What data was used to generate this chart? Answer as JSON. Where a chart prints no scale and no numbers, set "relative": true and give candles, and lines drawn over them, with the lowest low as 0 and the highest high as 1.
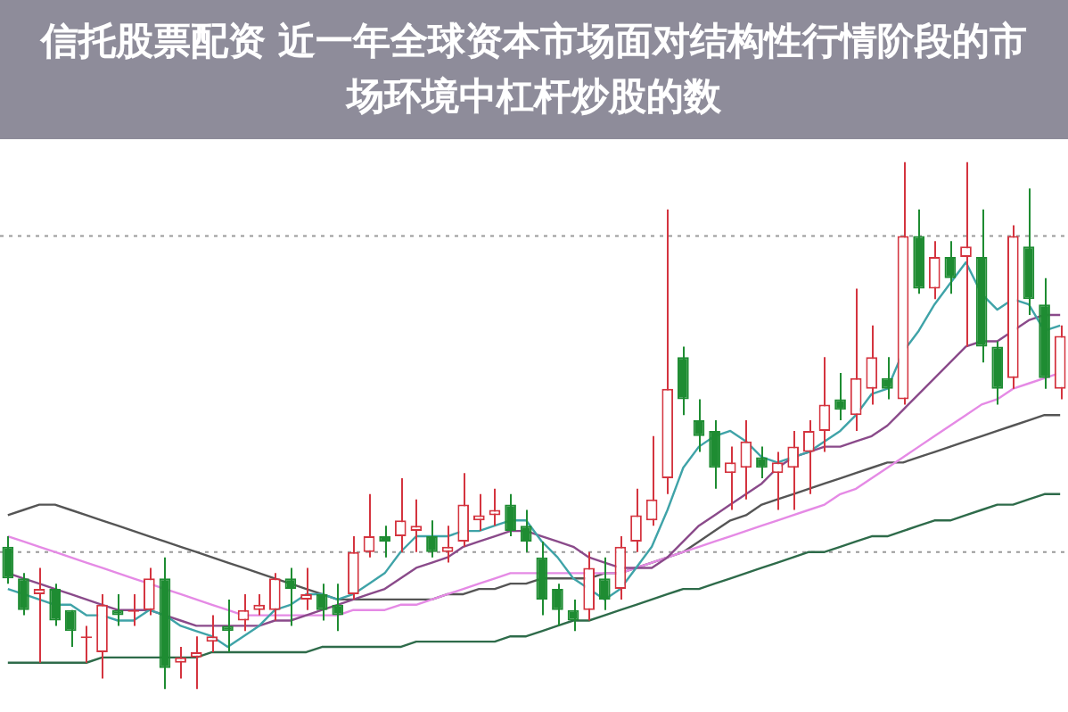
{
  "chart_data": {
    "type": "candlestick",
    "title": "信托股票配资 近一年全球资本市场面对结构性行情阶段的市场环境中杠杆炒股的数",
    "relative": true,
    "legend": false,
    "categories": [
      null,
      null,
      null,
      null,
      null,
      null,
      null,
      null,
      null,
      null,
      null,
      null,
      null,
      null,
      null,
      null,
      null,
      null,
      null,
      null,
      null,
      null,
      null,
      null,
      null,
      null,
      null,
      null,
      null,
      null,
      null,
      null,
      null,
      null,
      null,
      null,
      null,
      null,
      null,
      null,
      null,
      null,
      null,
      null,
      null,
      null,
      null,
      null,
      null,
      null,
      null,
      null,
      null,
      null,
      null,
      null,
      null,
      null,
      null,
      null,
      null,
      null,
      null,
      null,
      null,
      null,
      null,
      null
    ],
    "ohlc": [
      [
        0.27,
        0.29,
        0.2,
        0.21
      ],
      [
        0.21,
        0.22,
        0.14,
        0.15
      ],
      [
        0.18,
        0.23,
        0.05,
        0.19
      ],
      [
        0.19,
        0.2,
        0.12,
        0.13
      ],
      [
        0.15,
        0.15,
        0.08,
        0.11
      ],
      [
        0.1,
        0.12,
        0.05,
        0.1
      ],
      [
        0.07,
        0.18,
        0.02,
        0.16
      ],
      [
        0.15,
        0.18,
        0.12,
        0.14
      ],
      [
        0.15,
        0.18,
        0.12,
        0.15
      ],
      [
        0.15,
        0.23,
        0.14,
        0.21
      ],
      [
        0.21,
        0.25,
        0,
        0.04
      ],
      [
        0.05,
        0.08,
        0.02,
        0.06
      ],
      [
        0.06,
        0.1,
        0,
        0.07
      ],
      [
        0.09,
        0.14,
        0.07,
        0.1
      ],
      [
        0.12,
        0.17,
        0.07,
        0.11
      ],
      [
        0.13,
        0.18,
        0.11,
        0.15
      ],
      [
        0.15,
        0.18,
        0.14,
        0.16
      ],
      [
        0.15,
        0.22,
        0.13,
        0.21
      ],
      [
        0.21,
        0.23,
        0.12,
        0.19
      ],
      [
        0.17,
        0.23,
        0.15,
        0.18
      ],
      [
        0.18,
        0.2,
        0.13,
        0.15
      ],
      [
        0.16,
        0.2,
        0.11,
        0.14
      ],
      [
        0.18,
        0.29,
        0.17,
        0.26
      ],
      [
        0.26,
        0.37,
        0.25,
        0.29
      ],
      [
        0.29,
        0.31,
        0.25,
        0.28
      ],
      [
        0.29,
        0.4,
        0.26,
        0.32
      ],
      [
        0.3,
        0.36,
        0.26,
        0.31
      ],
      [
        0.29,
        0.32,
        0.25,
        0.26
      ],
      [
        0.26,
        0.31,
        0.24,
        0.27
      ],
      [
        0.28,
        0.41,
        0.27,
        0.35
      ],
      [
        0.32,
        0.37,
        0.3,
        0.33
      ],
      [
        0.33,
        0.38,
        0.31,
        0.34
      ],
      [
        0.35,
        0.37,
        0.29,
        0.3
      ],
      [
        0.31,
        0.34,
        0.26,
        0.28
      ],
      [
        0.25,
        0.28,
        0.14,
        0.17
      ],
      [
        0.19,
        0.2,
        0.12,
        0.15
      ],
      [
        0.15,
        0.17,
        0.11,
        0.13
      ],
      [
        0.15,
        0.26,
        0.13,
        0.23
      ],
      [
        0.21,
        0.25,
        0.15,
        0.17
      ],
      [
        0.19,
        0.29,
        0.17,
        0.27
      ],
      [
        0.28,
        0.38,
        0.26,
        0.33
      ],
      [
        0.32,
        0.48,
        0.31,
        0.36
      ],
      [
        0.4,
        0.91,
        0.37,
        0.57
      ],
      [
        0.63,
        0.65,
        0.52,
        0.55
      ],
      [
        0.51,
        0.55,
        0.45,
        0.48
      ],
      [
        0.49,
        0.51,
        0.38,
        0.42
      ],
      [
        0.41,
        0.46,
        0.34,
        0.43
      ],
      [
        0.42,
        0.51,
        0.36,
        0.47
      ],
      [
        0.44,
        0.46,
        0.4,
        0.42
      ],
      [
        0.41,
        0.45,
        0.34,
        0.43
      ],
      [
        0.42,
        0.49,
        0.34,
        0.46
      ],
      [
        0.45,
        0.51,
        0.37,
        0.49
      ],
      [
        0.49,
        0.63,
        0.45,
        0.54
      ],
      [
        0.55,
        0.6,
        0.51,
        0.53
      ],
      [
        0.52,
        0.76,
        0.49,
        0.59
      ],
      [
        0.57,
        0.69,
        0.54,
        0.63
      ],
      [
        0.59,
        0.63,
        0.55,
        0.57
      ],
      [
        0.55,
        1.0,
        0.54,
        0.86
      ],
      [
        0.86,
        0.91,
        0.75,
        0.76
      ],
      [
        0.76,
        0.85,
        0.74,
        0.82
      ],
      [
        0.82,
        0.85,
        0.75,
        0.78
      ],
      [
        0.82,
        1.0,
        0.65,
        0.84
      ],
      [
        0.82,
        0.91,
        0.62,
        0.65
      ],
      [
        0.65,
        0.66,
        0.54,
        0.57
      ],
      [
        0.59,
        0.88,
        0.57,
        0.86
      ],
      [
        0.84,
        0.95,
        0.71,
        0.74
      ],
      [
        0.73,
        0.78,
        0.57,
        0.59
      ],
      [
        0.57,
        0.69,
        0.55,
        0.67
      ]
    ],
    "colors": [
      "#1e8c32",
      "#1e8c32",
      "#d4343f",
      "#1e8c32",
      "#1e8c32",
      "#d4343f",
      "#d4343f",
      "#1e8c32",
      "#d4343f",
      "#d4343f",
      "#1e8c32",
      "#d4343f",
      "#d4343f",
      "#d4343f",
      "#1e8c32",
      "#d4343f",
      "#d4343f",
      "#d4343f",
      "#1e8c32",
      "#d4343f",
      "#1e8c32",
      "#1e8c32",
      "#d4343f",
      "#d4343f",
      "#1e8c32",
      "#d4343f",
      "#d4343f",
      "#1e8c32",
      "#d4343f",
      "#d4343f",
      "#d4343f",
      "#d4343f",
      "#1e8c32",
      "#1e8c32",
      "#1e8c32",
      "#1e8c32",
      "#1e8c32",
      "#d4343f",
      "#1e8c32",
      "#d4343f",
      "#d4343f",
      "#d4343f",
      "#d4343f",
      "#1e8c32",
      "#1e8c32",
      "#1e8c32",
      "#d4343f",
      "#d4343f",
      "#1e8c32",
      "#d4343f",
      "#d4343f",
      "#d4343f",
      "#d4343f",
      "#1e8c32",
      "#d4343f",
      "#d4343f",
      "#1e8c32",
      "#d4343f",
      "#1e8c32",
      "#d4343f",
      "#1e8c32",
      "#d4343f",
      "#1e8c32",
      "#1e8c32",
      "#d4343f",
      "#1e8c32",
      "#1e8c32",
      "#d4343f"
    ],
    "marker": "none",
    "line_style": "solid",
    "series": [
      {
        "type": "line",
        "color": "#3fa3a8",
        "values": [
          0.19,
          0.18,
          0.17,
          0.16,
          0.16,
          0.14,
          0.14,
          0.13,
          0.13,
          0.15,
          0.14,
          0.12,
          0.11,
          0.1,
          0.08,
          0.1,
          0.12,
          0.15,
          0.16,
          0.18,
          0.18,
          0.17,
          0.18,
          0.2,
          0.22,
          0.26,
          0.29,
          0.29,
          0.29,
          0.3,
          0.3,
          0.31,
          0.32,
          0.32,
          0.28,
          0.25,
          0.21,
          0.19,
          0.17,
          0.19,
          0.23,
          0.27,
          0.34,
          0.42,
          0.46,
          0.48,
          0.49,
          0.47,
          0.44,
          0.43,
          0.44,
          0.45,
          0.47,
          0.49,
          0.52,
          0.56,
          0.57,
          0.64,
          0.68,
          0.73,
          0.77,
          0.81,
          0.75,
          0.72,
          0.74,
          0.73,
          0.68,
          0.69
        ]
      },
      {
        "type": "line",
        "color": "#8a4a8a",
        "values": [
          0.22,
          0.21,
          0.2,
          0.19,
          0.18,
          0.17,
          0.16,
          0.15,
          0.15,
          0.15,
          0.14,
          0.13,
          0.12,
          0.12,
          0.12,
          0.12,
          0.12,
          0.13,
          0.13,
          0.14,
          0.15,
          0.16,
          0.17,
          0.18,
          0.19,
          0.21,
          0.23,
          0.24,
          0.25,
          0.27,
          0.28,
          0.29,
          0.3,
          0.3,
          0.29,
          0.28,
          0.27,
          0.25,
          0.24,
          0.23,
          0.23,
          0.23,
          0.25,
          0.28,
          0.31,
          0.33,
          0.35,
          0.37,
          0.39,
          0.42,
          0.44,
          0.45,
          0.46,
          0.46,
          0.47,
          0.48,
          0.5,
          0.53,
          0.56,
          0.59,
          0.62,
          0.65,
          0.66,
          0.66,
          0.68,
          0.7,
          0.71,
          0.71
        ]
      },
      {
        "type": "line",
        "color": "#e58ae5",
        "values": [
          0.29,
          0.28,
          0.27,
          0.26,
          0.25,
          0.24,
          0.23,
          0.22,
          0.21,
          0.2,
          0.19,
          0.18,
          0.17,
          0.16,
          0.15,
          0.14,
          0.14,
          0.14,
          0.14,
          0.14,
          0.14,
          0.14,
          0.15,
          0.15,
          0.15,
          0.16,
          0.16,
          0.17,
          0.18,
          0.19,
          0.2,
          0.21,
          0.22,
          0.22,
          0.22,
          0.22,
          0.22,
          0.22,
          0.22,
          0.22,
          0.23,
          0.24,
          0.25,
          0.26,
          0.27,
          0.28,
          0.29,
          0.3,
          0.31,
          0.32,
          0.33,
          0.34,
          0.35,
          0.37,
          0.38,
          0.4,
          0.42,
          0.44,
          0.46,
          0.48,
          0.5,
          0.52,
          0.54,
          0.55,
          0.57,
          0.58,
          0.59,
          0.6
        ]
      },
      {
        "type": "line",
        "color": "#555555",
        "values": [
          0.33,
          0.34,
          0.35,
          0.35,
          0.34,
          0.33,
          0.32,
          0.31,
          0.3,
          0.29,
          0.28,
          0.27,
          0.26,
          0.25,
          0.24,
          0.23,
          0.22,
          0.21,
          0.2,
          0.19,
          0.18,
          0.17,
          0.17,
          0.17,
          0.17,
          0.17,
          0.17,
          0.17,
          0.18,
          0.18,
          0.19,
          0.19,
          0.2,
          0.2,
          0.21,
          0.21,
          0.21,
          0.21,
          0.22,
          0.22,
          0.23,
          0.24,
          0.25,
          0.26,
          0.28,
          0.3,
          0.32,
          0.33,
          0.35,
          0.36,
          0.37,
          0.38,
          0.39,
          0.4,
          0.41,
          0.42,
          0.43,
          0.43,
          0.44,
          0.45,
          0.46,
          0.47,
          0.48,
          0.49,
          0.5,
          0.51,
          0.52,
          0.52
        ]
      },
      {
        "type": "line",
        "color": "#2e6b4a",
        "values": [
          0.05,
          0.05,
          0.05,
          0.05,
          0.05,
          0.05,
          0.06,
          0.06,
          0.06,
          0.06,
          0.06,
          0.06,
          0.06,
          0.07,
          0.07,
          0.07,
          0.07,
          0.07,
          0.07,
          0.07,
          0.08,
          0.08,
          0.08,
          0.08,
          0.08,
          0.08,
          0.09,
          0.09,
          0.09,
          0.09,
          0.09,
          0.09,
          0.1,
          0.1,
          0.11,
          0.12,
          0.13,
          0.13,
          0.14,
          0.15,
          0.16,
          0.17,
          0.18,
          0.19,
          0.19,
          0.2,
          0.21,
          0.22,
          0.23,
          0.24,
          0.25,
          0.26,
          0.26,
          0.27,
          0.28,
          0.29,
          0.29,
          0.3,
          0.31,
          0.32,
          0.32,
          0.33,
          0.34,
          0.35,
          0.35,
          0.36,
          0.37,
          0.37
        ]
      }
    ],
    "ref_lines": [
      {
        "axis": "y",
        "value": 0.86,
        "color": "#9a9a9a",
        "line_style": "dotted"
      },
      {
        "axis": "y",
        "value": 0.26,
        "color": "#9a9a9a",
        "line_style": "dotted"
      }
    ]
  }
}
